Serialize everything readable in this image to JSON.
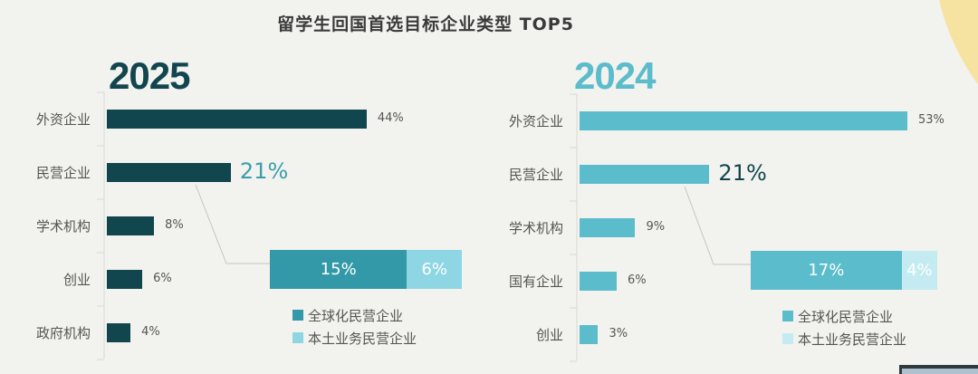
{
  "title": "留学生回国首选目标企业类型 TOP5",
  "chart_data": [
    {
      "type": "bar",
      "orientation": "horizontal",
      "title": "2025",
      "categories": [
        "外资企业",
        "民营企业",
        "学术机构",
        "创业",
        "政府机构"
      ],
      "values": [
        44,
        21,
        8,
        6,
        4
      ],
      "value_labels": [
        "44%",
        "21%",
        "8%",
        "6%",
        "4%"
      ],
      "bar_color": "#11464f",
      "year_color": "#11464f",
      "highlight_label_color": "#3a9eab",
      "breakdown": {
        "category": "民营企业",
        "type": "stacked-bar",
        "series": [
          {
            "name": "全球化民营企业",
            "value": 15,
            "label": "15%",
            "color": "#3399a9"
          },
          {
            "name": "本土业务民营企业",
            "value": 6,
            "label": "6%",
            "color": "#8ed6e4"
          }
        ]
      }
    },
    {
      "type": "bar",
      "orientation": "horizontal",
      "title": "2024",
      "categories": [
        "外资企业",
        "民营企业",
        "学术机构",
        "国有企业",
        "创业"
      ],
      "values": [
        53,
        21,
        9,
        6,
        3
      ],
      "value_labels": [
        "53%",
        "21%",
        "9%",
        "6%",
        "3%"
      ],
      "bar_color": "#5bbccc",
      "year_color": "#5bbccc",
      "highlight_label_color": "#11464f",
      "breakdown": {
        "category": "民营企业",
        "type": "stacked-bar",
        "series": [
          {
            "name": "全球化民营企业",
            "value": 17,
            "label": "17%",
            "color": "#5bbccc"
          },
          {
            "name": "本土业务民营企业",
            "value": 4,
            "label": "4%",
            "color": "#c4ebf1"
          }
        ]
      }
    }
  ]
}
